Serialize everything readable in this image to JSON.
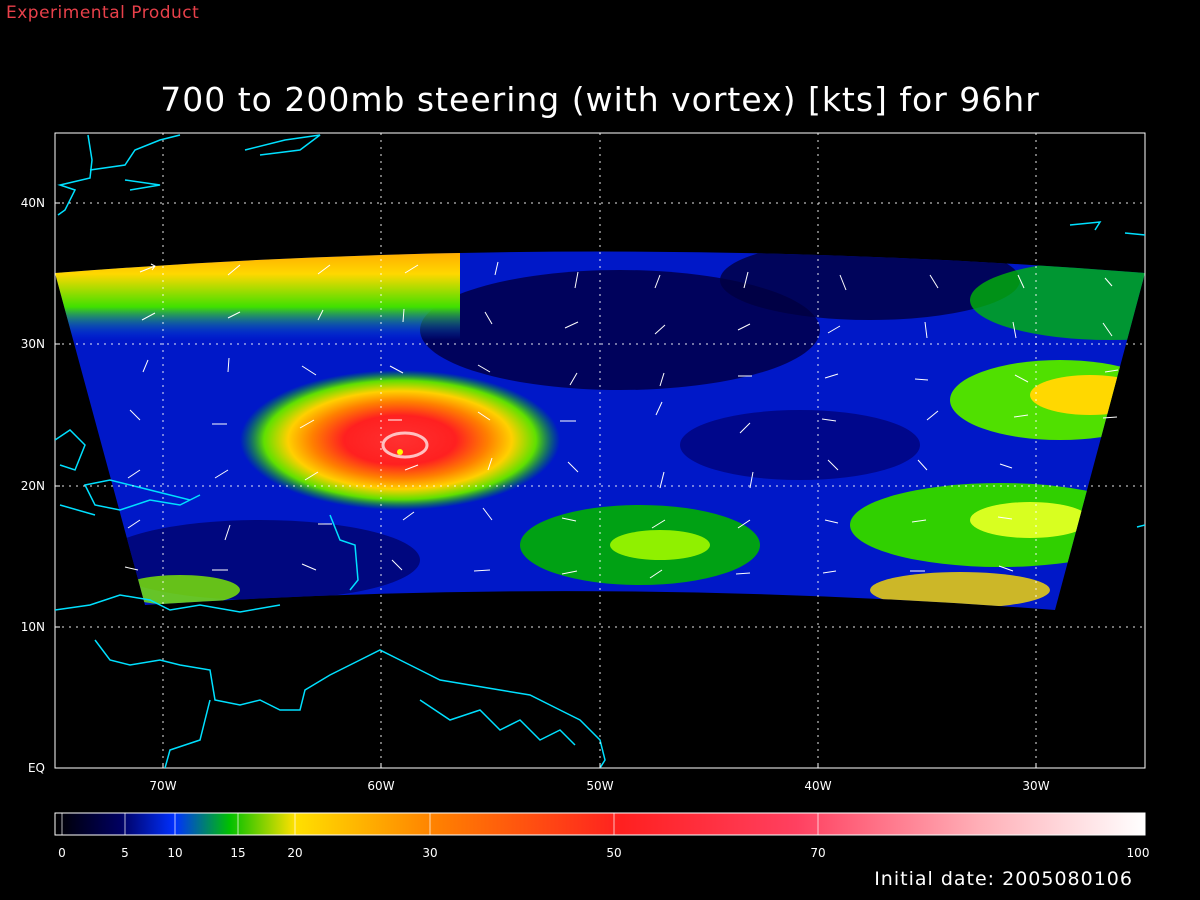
{
  "header": {
    "experimental_label": "Experimental Product",
    "title": "700 to 200mb steering (with vortex) [kts] for 96hr",
    "initial_date": "Initial date: 2005080106"
  },
  "map": {
    "lon_range": [
      -75,
      -25
    ],
    "lat_range": [
      0,
      45
    ],
    "lat_labels": [
      "EQ",
      "10N",
      "20N",
      "30N",
      "40N"
    ],
    "lon_labels": [
      "70W",
      "60W",
      "50W",
      "40W",
      "30W"
    ],
    "grid": true,
    "coastline_color": "#00e0ff"
  },
  "colorbar": {
    "labels": [
      "0",
      "5",
      "10",
      "15",
      "20",
      "30",
      "50",
      "70",
      "100"
    ]
  },
  "colors": {
    "experimental": "#e8404a",
    "background": "#000000",
    "text": "#ffffff"
  }
}
